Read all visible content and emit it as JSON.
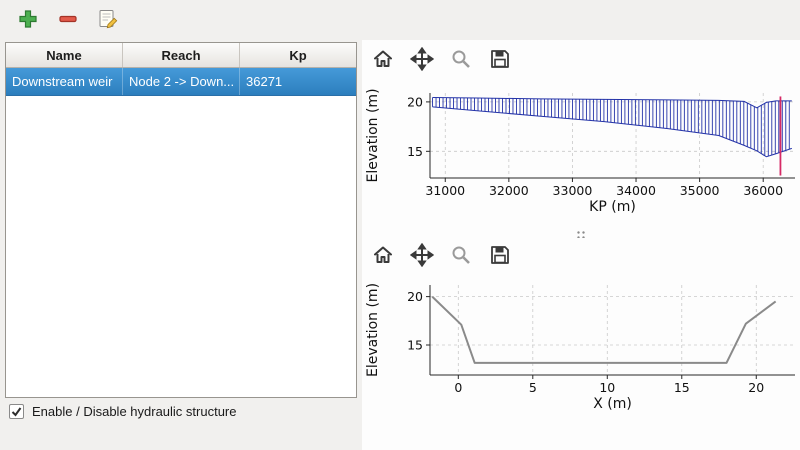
{
  "main_toolbar": {
    "buttons": [
      {
        "icon": "add-icon"
      },
      {
        "icon": "remove-icon"
      },
      {
        "icon": "edit-icon"
      }
    ]
  },
  "structures_table": {
    "columns": [
      "Name",
      "Reach",
      "Kp"
    ],
    "rows": [
      {
        "name": "Downstream weir",
        "reach": "Node 2 -> Down...",
        "kp": "36271",
        "selected": true
      }
    ]
  },
  "footer": {
    "checkbox_label": "Enable / Disable hydraulic structure",
    "checked": true
  },
  "plot_toolbar_icons": [
    "home-icon",
    "pan-icon",
    "zoom-icon",
    "save-icon"
  ],
  "colors": {
    "selection_blue": "#3489cc",
    "profile_blue": "#2433a8",
    "marker_pink": "#d62a66",
    "section_gray": "#8a8a8a",
    "window_bg": "#f1f0ee"
  },
  "chart_data": [
    {
      "type": "area",
      "title": "",
      "xlabel": "KP (m)",
      "ylabel": "Elevation (m)",
      "xlim": [
        30760,
        36500
      ],
      "ylim": [
        12.3,
        20.9
      ],
      "xticks": [
        31000,
        32000,
        33000,
        34000,
        35000,
        36000
      ],
      "yticks": [
        15,
        20
      ],
      "grid": true,
      "legend": false,
      "series": [
        {
          "name": "top-envelope",
          "x": [
            30800,
            31500,
            32500,
            33500,
            34500,
            35300,
            35700,
            35900,
            36050,
            36200,
            36450
          ],
          "y": [
            20.45,
            20.4,
            20.3,
            20.25,
            20.2,
            20.15,
            20.05,
            19.4,
            19.95,
            20.1,
            20.1
          ]
        },
        {
          "name": "bottom-envelope",
          "x": [
            30800,
            31500,
            32500,
            33500,
            34500,
            35300,
            35700,
            35900,
            36050,
            36200,
            36450
          ],
          "y": [
            19.5,
            19.1,
            18.55,
            18.0,
            17.3,
            16.6,
            15.6,
            15.05,
            14.45,
            14.75,
            15.3
          ]
        }
      ],
      "hatch_interval": 55,
      "line_color": "#2433a8",
      "marker_line": {
        "x": 36271,
        "ymin": 12.55,
        "ymax": 20.55,
        "color": "#d62a66"
      }
    },
    {
      "type": "line",
      "title": "",
      "xlabel": "X (m)",
      "ylabel": "Elevation (m)",
      "xlim": [
        -1.9,
        22.6
      ],
      "ylim": [
        11.9,
        21.2
      ],
      "xticks": [
        0,
        5,
        10,
        15,
        20
      ],
      "yticks": [
        15,
        20
      ],
      "grid": true,
      "legend": false,
      "x": [
        -1.75,
        0.2,
        1.1,
        18.0,
        19.3,
        21.3
      ],
      "y": [
        20.0,
        17.1,
        13.15,
        13.15,
        17.2,
        19.5
      ],
      "line_color": "#8a8a8a"
    }
  ]
}
